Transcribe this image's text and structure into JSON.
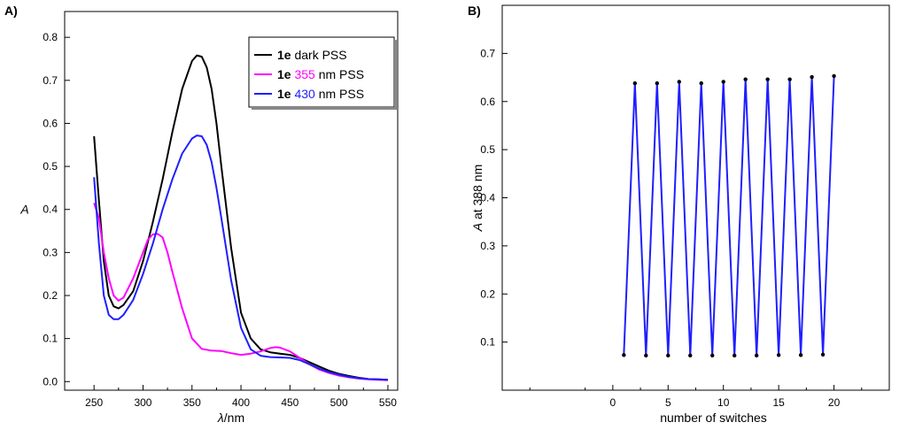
{
  "chart_data": [
    {
      "type": "line",
      "panel_label": "A)",
      "xlabel_italic": "λ",
      "xlabel_rest": "/nm",
      "ylabel": "A",
      "xlim": [
        220,
        560
      ],
      "ylim": [
        -0.02,
        0.86
      ],
      "x_ticks": [
        250,
        300,
        350,
        400,
        450,
        500,
        550
      ],
      "y_ticks": [
        0.0,
        0.1,
        0.2,
        0.3,
        0.4,
        0.5,
        0.6,
        0.7,
        0.8
      ],
      "grid": false,
      "legend_position": "top-right",
      "series": [
        {
          "name": "dark PSS",
          "compound": "1e",
          "name_colored": "",
          "color": "#000000",
          "x": [
            250,
            255,
            260,
            265,
            270,
            275,
            280,
            290,
            300,
            310,
            320,
            330,
            340,
            350,
            355,
            360,
            365,
            370,
            375,
            380,
            390,
            400,
            410,
            420,
            430,
            440,
            450,
            460,
            470,
            480,
            490,
            500,
            510,
            520,
            530,
            540,
            550
          ],
          "y": [
            0.57,
            0.42,
            0.28,
            0.2,
            0.175,
            0.17,
            0.178,
            0.21,
            0.28,
            0.37,
            0.47,
            0.58,
            0.68,
            0.745,
            0.758,
            0.755,
            0.73,
            0.68,
            0.6,
            0.5,
            0.31,
            0.16,
            0.1,
            0.075,
            0.068,
            0.065,
            0.062,
            0.055,
            0.045,
            0.035,
            0.025,
            0.018,
            0.013,
            0.009,
            0.006,
            0.005,
            0.004
          ]
        },
        {
          "name": "nm PSS",
          "compound": "1e",
          "name_colored": "355",
          "color": "#ff00ff",
          "x": [
            250,
            255,
            260,
            265,
            270,
            275,
            280,
            290,
            300,
            305,
            310,
            315,
            320,
            325,
            330,
            340,
            350,
            360,
            370,
            380,
            390,
            400,
            410,
            420,
            430,
            435,
            440,
            450,
            460,
            470,
            480,
            490,
            500,
            510,
            520,
            530,
            540,
            550
          ],
          "y": [
            0.415,
            0.38,
            0.3,
            0.24,
            0.2,
            0.188,
            0.195,
            0.24,
            0.3,
            0.33,
            0.342,
            0.343,
            0.335,
            0.3,
            0.255,
            0.17,
            0.1,
            0.076,
            0.072,
            0.071,
            0.066,
            0.062,
            0.065,
            0.07,
            0.078,
            0.08,
            0.079,
            0.07,
            0.055,
            0.04,
            0.028,
            0.02,
            0.014,
            0.01,
            0.007,
            0.005,
            0.004,
            0.003
          ]
        },
        {
          "name": "nm PSS",
          "compound": "1e",
          "name_colored": "430",
          "color": "#1f1fff",
          "x": [
            250,
            255,
            260,
            265,
            270,
            275,
            280,
            290,
            300,
            310,
            320,
            330,
            340,
            350,
            355,
            360,
            365,
            370,
            375,
            380,
            390,
            400,
            410,
            420,
            430,
            440,
            450,
            460,
            470,
            480,
            490,
            500,
            510,
            520,
            530,
            540,
            550
          ],
          "y": [
            0.475,
            0.32,
            0.2,
            0.155,
            0.145,
            0.145,
            0.155,
            0.19,
            0.25,
            0.32,
            0.4,
            0.47,
            0.53,
            0.565,
            0.572,
            0.57,
            0.55,
            0.51,
            0.45,
            0.38,
            0.235,
            0.125,
            0.075,
            0.06,
            0.057,
            0.056,
            0.055,
            0.05,
            0.04,
            0.03,
            0.022,
            0.016,
            0.011,
            0.008,
            0.006,
            0.005,
            0.004
          ]
        }
      ]
    },
    {
      "type": "line",
      "panel_label": "B)",
      "xlabel": "number of switches",
      "ylabel_italic": "A",
      "ylabel_rest": " at 388 nm",
      "xlim": [
        -10,
        25
      ],
      "ylim": [
        0.0,
        0.8
      ],
      "x_ticks": [
        0,
        5,
        10,
        15,
        20
      ],
      "y_ticks": [
        0.1,
        0.2,
        0.3,
        0.4,
        0.5,
        0.6,
        0.7
      ],
      "grid": false,
      "line_color": "#1f1fff",
      "marker_color": "#000000",
      "x": [
        1,
        2,
        3,
        4,
        5,
        6,
        7,
        8,
        9,
        10,
        11,
        12,
        13,
        14,
        15,
        16,
        17,
        18,
        19,
        20
      ],
      "y": [
        0.073,
        0.638,
        0.072,
        0.638,
        0.072,
        0.641,
        0.072,
        0.638,
        0.072,
        0.641,
        0.072,
        0.646,
        0.072,
        0.646,
        0.073,
        0.646,
        0.073,
        0.651,
        0.074,
        0.653
      ]
    }
  ]
}
